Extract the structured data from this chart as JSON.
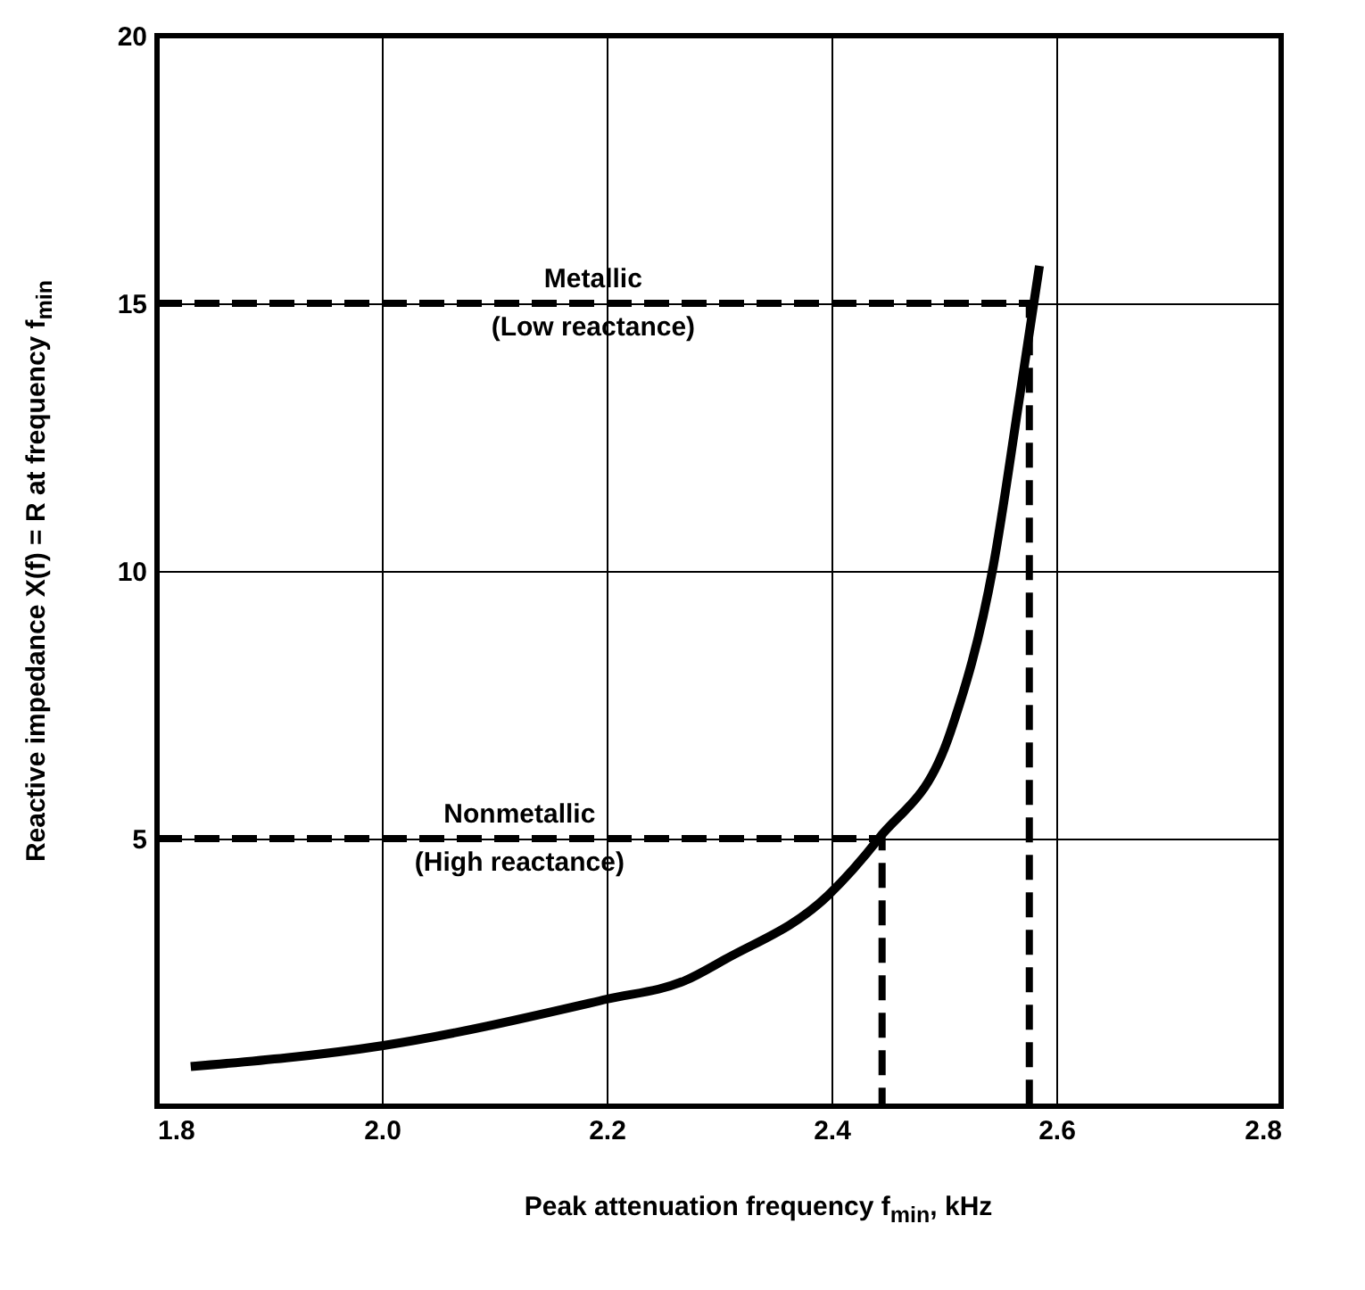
{
  "chart_data": {
    "type": "line",
    "xlabel": "Peak attenuation frequency  f$_{min}$, kHz",
    "ylabel": "Reactive impedance X(f) = R at frequency  f$_{min}$",
    "xlim": [
      1.8,
      2.8
    ],
    "ylim": [
      0,
      20
    ],
    "xticks": [
      {
        "value": 1.8,
        "label": "1.8"
      },
      {
        "value": 2.0,
        "label": "2.0"
      },
      {
        "value": 2.2,
        "label": "2.2"
      },
      {
        "value": 2.4,
        "label": "2.4"
      },
      {
        "value": 2.6,
        "label": "2.6"
      },
      {
        "value": 2.8,
        "label": "2.8"
      }
    ],
    "yticks": [
      5,
      10,
      15,
      20
    ],
    "grid": true,
    "series": [
      {
        "color": "#000000",
        "line_style": "solid",
        "x": [
          1.83,
          2.0,
          2.2,
          2.27,
          2.305,
          2.397,
          2.442,
          2.506,
          2.544,
          2.567,
          2.585
        ],
        "values": [
          0.74,
          1.13,
          2.0,
          2.35,
          2.74,
          3.94,
          5.0,
          7.0,
          10.1,
          13.2,
          15.7
        ]
      },
      {
        "color": "#000000",
        "line_style": "dashed",
        "x": [
          1.8,
          2.576,
          2.576
        ],
        "values": [
          15,
          15,
          0
        ]
      },
      {
        "color": "#000000",
        "line_style": "dashed",
        "x": [
          1.8,
          2.445,
          2.445
        ],
        "values": [
          5,
          5,
          0
        ]
      }
    ],
    "annotations": [
      "Metallic",
      "(Low reactance)",
      "Nonmetallic",
      "(High reactance)"
    ]
  }
}
